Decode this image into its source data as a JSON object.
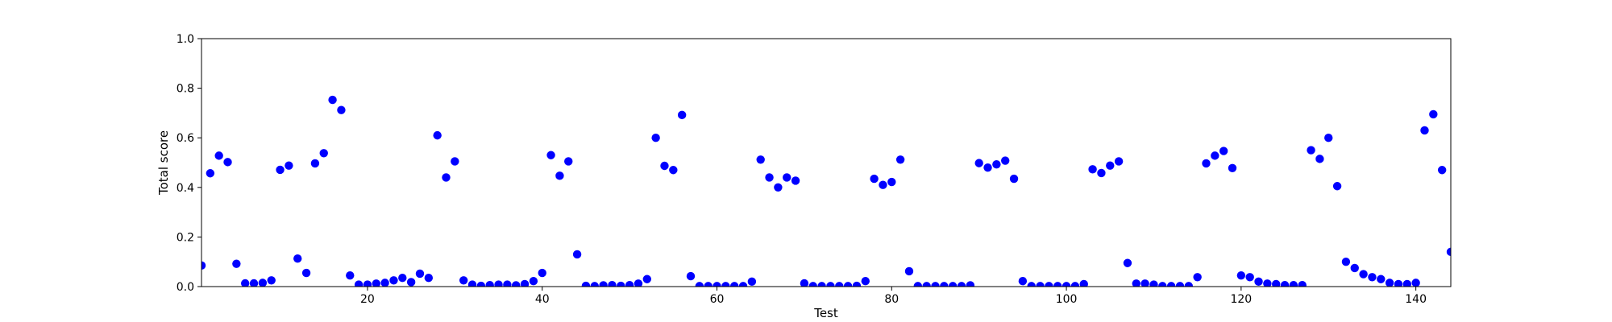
{
  "chart_data": {
    "type": "scatter",
    "xlabel": "Test",
    "ylabel": "Total score",
    "xlim": [
      1,
      144
    ],
    "ylim": [
      0.0,
      1.0
    ],
    "xticks": [
      20,
      40,
      60,
      80,
      100,
      120,
      140
    ],
    "xtick_labels": [
      "20",
      "40",
      "60",
      "80",
      "100",
      "120",
      "140"
    ],
    "yticks": [
      0.0,
      0.2,
      0.4,
      0.6,
      0.8,
      1.0
    ],
    "ytick_labels": [
      "0.0",
      "0.2",
      "0.4",
      "0.6",
      "0.8",
      "1.0"
    ],
    "grid": false,
    "series": [
      {
        "color": "#0000ff",
        "x": [
          1,
          2,
          3,
          4,
          5,
          6,
          7,
          8,
          9,
          10,
          11,
          12,
          13,
          14,
          15,
          16,
          17,
          18,
          19,
          20,
          21,
          22,
          23,
          24,
          25,
          26,
          27,
          28,
          29,
          30,
          31,
          32,
          33,
          34,
          35,
          36,
          37,
          38,
          39,
          40,
          41,
          42,
          43,
          44,
          45,
          46,
          47,
          48,
          49,
          50,
          51,
          52,
          53,
          54,
          55,
          56,
          57,
          58,
          59,
          60,
          61,
          62,
          63,
          64,
          65,
          66,
          67,
          68,
          69,
          70,
          71,
          72,
          73,
          74,
          75,
          76,
          77,
          78,
          79,
          80,
          81,
          82,
          83,
          84,
          85,
          86,
          87,
          88,
          89,
          90,
          91,
          92,
          93,
          94,
          95,
          96,
          97,
          98,
          99,
          100,
          101,
          102,
          103,
          104,
          105,
          106,
          107,
          108,
          109,
          110,
          111,
          112,
          113,
          114,
          115,
          116,
          117,
          118,
          119,
          120,
          121,
          122,
          123,
          124,
          125,
          126,
          127,
          128,
          129,
          130,
          131,
          132,
          133,
          134,
          135,
          136,
          137,
          138,
          139,
          140,
          141,
          142,
          143,
          144
        ],
        "y": [
          0.085,
          0.457,
          0.528,
          0.502,
          0.092,
          0.013,
          0.013,
          0.015,
          0.025,
          0.471,
          0.488,
          0.113,
          0.055,
          0.497,
          0.538,
          0.753,
          0.712,
          0.045,
          0.008,
          0.008,
          0.012,
          0.015,
          0.025,
          0.035,
          0.018,
          0.052,
          0.035,
          0.61,
          0.44,
          0.505,
          0.025,
          0.008,
          0.003,
          0.006,
          0.008,
          0.008,
          0.005,
          0.01,
          0.022,
          0.055,
          0.53,
          0.447,
          0.505,
          0.13,
          0.003,
          0.002,
          0.005,
          0.006,
          0.003,
          0.006,
          0.012,
          0.03,
          0.6,
          0.487,
          0.47,
          0.692,
          0.042,
          0.002,
          0.002,
          0.002,
          0.002,
          0.002,
          0.002,
          0.02,
          0.512,
          0.44,
          0.4,
          0.44,
          0.427,
          0.013,
          0.002,
          0.002,
          0.002,
          0.002,
          0.002,
          0.003,
          0.022,
          0.435,
          0.41,
          0.422,
          0.512,
          0.062,
          0.002,
          0.002,
          0.002,
          0.002,
          0.002,
          0.002,
          0.005,
          0.498,
          0.48,
          0.493,
          0.508,
          0.435,
          0.022,
          0.002,
          0.002,
          0.002,
          0.002,
          0.002,
          0.002,
          0.01,
          0.473,
          0.458,
          0.488,
          0.505,
          0.095,
          0.012,
          0.012,
          0.008,
          0.002,
          0.002,
          0.002,
          0.002,
          0.038,
          0.497,
          0.528,
          0.547,
          0.478,
          0.045,
          0.038,
          0.02,
          0.012,
          0.01,
          0.006,
          0.006,
          0.006,
          0.55,
          0.515,
          0.6,
          0.405,
          0.1,
          0.075,
          0.05,
          0.038,
          0.03,
          0.015,
          0.01,
          0.01,
          0.015,
          0.63,
          0.695,
          0.47,
          0.14
        ]
      }
    ]
  }
}
